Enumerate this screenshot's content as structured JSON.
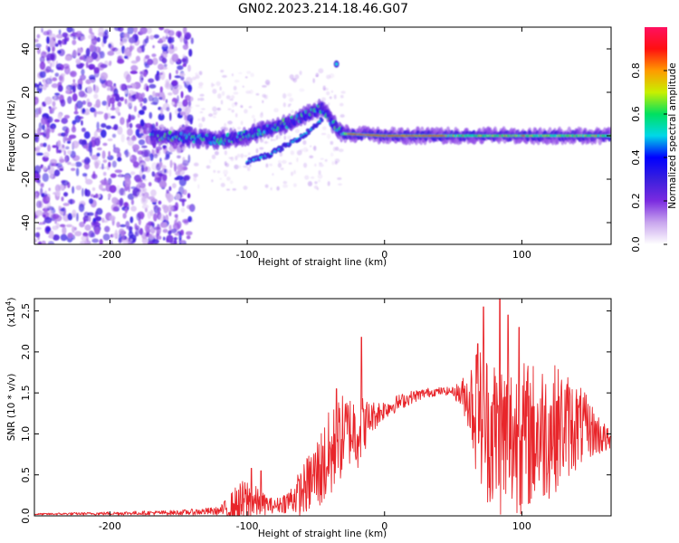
{
  "title": "GN02.2023.214.18.46.G07",
  "chart_data": [
    {
      "type": "heatmap",
      "name": "spectrogram",
      "xlabel": "Height of straight line (km)",
      "ylabel": "Frequency (Hz)",
      "xlim": [
        -255,
        165
      ],
      "ylim": [
        -50,
        50
      ],
      "xticks": [
        -200,
        -100,
        0,
        100
      ],
      "yticks": [
        -40,
        -20,
        0,
        20,
        40
      ],
      "colorbar": {
        "label": "Normalized spectral amplitude",
        "range": [
          0,
          1
        ],
        "ticks": [
          "0.0",
          "0.2",
          "0.4",
          "0.6",
          "0.8"
        ],
        "tick_values": [
          0,
          0.2,
          0.4,
          0.6,
          0.8
        ],
        "colormap": [
          "#ffffff",
          "#c9a6ee",
          "#7b2be0",
          "#3a1fdd",
          "#0000ff",
          "#00d8e8",
          "#00e060",
          "#c8f000",
          "#ff9a00",
          "#ff1010",
          "#ff1060"
        ]
      },
      "features": {
        "noise_region_x": [
          -255,
          -140
        ],
        "ridge": [
          {
            "x": -165,
            "y": 0
          },
          {
            "x": -140,
            "y": -1
          },
          {
            "x": -120,
            "y": -2
          },
          {
            "x": -100,
            "y": 0
          },
          {
            "x": -85,
            "y": 3
          },
          {
            "x": -70,
            "y": 6
          },
          {
            "x": -55,
            "y": 10
          },
          {
            "x": -45,
            "y": 13
          },
          {
            "x": -38,
            "y": 6
          },
          {
            "x": -30,
            "y": 1
          },
          {
            "x": 0,
            "y": 0
          },
          {
            "x": 165,
            "y": 0
          }
        ],
        "lower_branch": [
          {
            "x": -100,
            "y": -12
          },
          {
            "x": -85,
            "y": -9
          },
          {
            "x": -70,
            "y": -4
          },
          {
            "x": -55,
            "y": 2
          },
          {
            "x": -45,
            "y": 8
          }
        ],
        "isolated_spot": {
          "x": -35,
          "y": 33
        }
      }
    },
    {
      "type": "line",
      "name": "snr",
      "xlabel": "Height of straight line (km)",
      "ylabel": "SNR (10 * v/v)",
      "yscale_label": "(x10",
      "yscale_exp": "4",
      "yscale_close": ")",
      "xlim": [
        -255,
        165
      ],
      "ylim": [
        0,
        2.65
      ],
      "xticks": [
        -200,
        -100,
        0,
        100
      ],
      "yticks": [
        "0.0",
        "0.5",
        "1.0",
        "1.5",
        "2.0",
        "2.5"
      ],
      "ytick_values": [
        0,
        0.5,
        1.0,
        1.5,
        2.0,
        2.5
      ],
      "color": "#e8252a",
      "envelope": {
        "x": [
          -255,
          -200,
          -150,
          -120,
          -108,
          -100,
          -90,
          -80,
          -70,
          -60,
          -50,
          -40,
          -30,
          -25,
          -20,
          -15,
          -10,
          0,
          10,
          20,
          30,
          40,
          50,
          60,
          65,
          70,
          80,
          90,
          100,
          110,
          120,
          130,
          140,
          150,
          160,
          165
        ],
        "base": [
          0.02,
          0.03,
          0.04,
          0.06,
          0.12,
          0.18,
          0.15,
          0.12,
          0.18,
          0.3,
          0.5,
          0.7,
          1.0,
          1.05,
          1.05,
          1.1,
          1.2,
          1.3,
          1.38,
          1.45,
          1.5,
          1.52,
          1.52,
          1.45,
          1.35,
          1.2,
          1.0,
          0.95,
          0.95,
          1.0,
          1.05,
          1.1,
          1.1,
          1.05,
          0.95,
          0.9
        ],
        "spread": [
          0.01,
          0.02,
          0.03,
          0.05,
          0.25,
          0.3,
          0.15,
          0.08,
          0.15,
          0.3,
          0.45,
          0.6,
          0.5,
          0.45,
          0.5,
          0.35,
          0.2,
          0.12,
          0.1,
          0.08,
          0.06,
          0.05,
          0.05,
          0.3,
          0.7,
          0.9,
          1.0,
          1.0,
          0.95,
          0.9,
          0.85,
          0.7,
          0.55,
          0.35,
          0.2,
          0.1
        ]
      },
      "peaks": [
        {
          "x": -97,
          "y": 0.58
        },
        {
          "x": -90,
          "y": 0.55
        },
        {
          "x": -45,
          "y": 0.85
        },
        {
          "x": -35,
          "y": 1.55
        },
        {
          "x": -17,
          "y": 2.18
        },
        {
          "x": 68,
          "y": 2.1
        },
        {
          "x": 72,
          "y": 2.55
        },
        {
          "x": 84,
          "y": 2.65
        },
        {
          "x": 90,
          "y": 2.45
        },
        {
          "x": 98,
          "y": 2.3
        }
      ]
    }
  ]
}
